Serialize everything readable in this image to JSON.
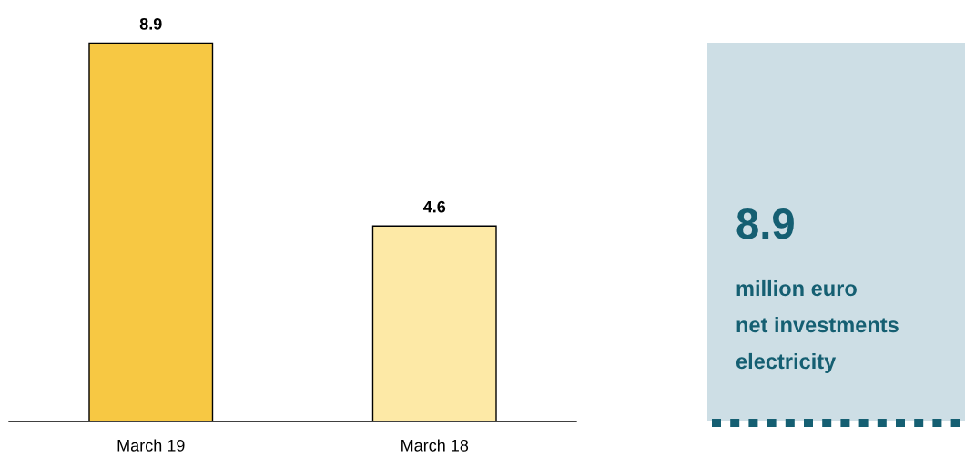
{
  "chart_data": [
    {
      "type": "bar",
      "categories": [
        "March 19",
        "March 18"
      ],
      "values": [
        8.9,
        4.6
      ],
      "colors": [
        "#f7c843",
        "#fde9a6"
      ],
      "data_labels": true,
      "tick_labels": "x"
    },
    {
      "type": "other",
      "title": "8.9",
      "annotations": [
        "million euro",
        "net investments",
        "electricity"
      ]
    }
  ]
}
